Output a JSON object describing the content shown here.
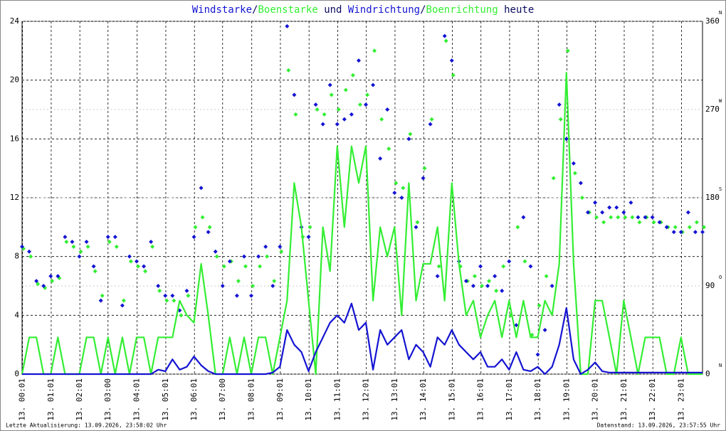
{
  "chart_data": {
    "type": "line",
    "title_joins": [
      "/",
      " und ",
      "/",
      " heute"
    ],
    "title_text_color": "#0a0a60",
    "footer_left": "Letzte Aktualisierung: 13.09.2026, 23:58:02 Uhr",
    "footer_right": "Datenstand: 13.09.2026, 23:57:55 Uhr",
    "x": [
      0,
      0.25,
      0.5,
      0.75,
      1,
      1.25,
      1.5,
      1.75,
      2,
      2.25,
      2.5,
      2.75,
      3,
      3.25,
      3.5,
      3.75,
      4,
      4.25,
      4.5,
      4.75,
      5,
      5.25,
      5.5,
      5.75,
      6,
      6.25,
      6.5,
      6.75,
      7,
      7.25,
      7.5,
      7.75,
      8,
      8.25,
      8.5,
      8.75,
      9,
      9.25,
      9.5,
      9.75,
      10,
      10.25,
      10.5,
      10.75,
      11,
      11.25,
      11.5,
      11.75,
      12,
      12.25,
      12.5,
      12.75,
      13,
      13.25,
      13.5,
      13.75,
      14,
      14.25,
      14.5,
      14.75,
      15,
      15.25,
      15.5,
      15.75,
      16,
      16.25,
      16.5,
      16.75,
      17,
      17.25,
      17.5,
      17.75,
      18,
      18.25,
      18.5,
      18.75,
      19,
      19.25,
      19.5,
      19.75,
      20,
      20.25,
      20.5,
      20.75,
      21,
      21.25,
      21.5,
      21.75,
      22,
      22.25,
      22.5,
      22.75,
      23,
      23.25,
      23.5,
      23.75
    ],
    "xlim": [
      0,
      23.75
    ],
    "xticks": [
      {
        "value": 0.017,
        "label": "13. 00:01"
      },
      {
        "value": 1.017,
        "label": "13. 01:01"
      },
      {
        "value": 2.017,
        "label": "13. 02:01"
      },
      {
        "value": 3,
        "label": "13. 03:00"
      },
      {
        "value": 4.017,
        "label": "13. 04:01"
      },
      {
        "value": 5.017,
        "label": "13. 05:01"
      },
      {
        "value": 6.017,
        "label": "13. 06:01"
      },
      {
        "value": 7,
        "label": "13. 07:00"
      },
      {
        "value": 8.017,
        "label": "13. 08:01"
      },
      {
        "value": 9.017,
        "label": "13. 09:01"
      },
      {
        "value": 10.017,
        "label": "13. 10:01"
      },
      {
        "value": 11.017,
        "label": "13. 11:01"
      },
      {
        "value": 12.017,
        "label": "13. 12:01"
      },
      {
        "value": 13.017,
        "label": "13. 13:01"
      },
      {
        "value": 14.017,
        "label": "13. 14:01"
      },
      {
        "value": 15.017,
        "label": "13. 15:01"
      },
      {
        "value": 16.017,
        "label": "13. 16:01"
      },
      {
        "value": 17.017,
        "label": "13. 17:01"
      },
      {
        "value": 18.017,
        "label": "13. 18:01"
      },
      {
        "value": 19.017,
        "label": "13. 19:01"
      },
      {
        "value": 20.017,
        "label": "13. 20:01"
      },
      {
        "value": 21.017,
        "label": "13. 21:01"
      },
      {
        "value": 22.017,
        "label": "13. 22:01"
      },
      {
        "value": 23.017,
        "label": "13. 23:01"
      }
    ],
    "ylim": [
      0,
      24
    ],
    "yticks": [
      0,
      4,
      8,
      12,
      16,
      20,
      24
    ],
    "y2lim": [
      0,
      360
    ],
    "y2ticks": [
      0,
      90,
      180,
      270,
      360
    ],
    "y2tick_compass": [
      "N",
      "O",
      "S",
      "W",
      "N"
    ],
    "grid": true,
    "series": [
      {
        "name": "Windstarke",
        "color": "#1414d2",
        "kind": "line",
        "values": [
          0,
          0,
          0,
          0,
          0,
          0,
          0,
          0,
          0,
          0,
          0,
          0,
          0,
          0,
          0,
          0,
          0,
          0,
          0,
          0.3,
          0.2,
          1,
          0.3,
          0.5,
          1.2,
          0.6,
          0.2,
          0,
          0,
          0,
          0,
          0,
          0,
          0,
          0,
          0.1,
          0.5,
          3,
          2,
          1.5,
          0.2,
          1.5,
          2.5,
          3.5,
          4,
          3.5,
          4.8,
          3,
          3.5,
          0.3,
          3,
          2,
          2.5,
          3,
          1,
          2,
          1.5,
          0.5,
          2.5,
          2,
          3,
          2,
          1.5,
          1,
          1.5,
          0.5,
          0.5,
          1,
          0.3,
          1.5,
          0.3,
          0.2,
          0.5,
          0,
          0.5,
          2,
          4.5,
          1,
          0,
          0.3,
          0.8,
          0.2,
          0.1,
          0.1,
          0.1,
          0.1,
          0.1,
          0.1,
          0.1,
          0.1,
          0.1,
          0.1,
          0.1,
          0.1,
          0.1,
          0.1
        ]
      },
      {
        "name": "Boenstarke",
        "color": "#33ee33",
        "kind": "line",
        "values": [
          0,
          2.5,
          2.5,
          0,
          0,
          2.5,
          0,
          0,
          0,
          2.5,
          2.5,
          0,
          2.5,
          0,
          2.5,
          0,
          2.5,
          2.5,
          0,
          2.5,
          2.5,
          2.5,
          5,
          4,
          3.5,
          7.5,
          4,
          0,
          0,
          2.5,
          0,
          2.5,
          0,
          2.5,
          2.5,
          0,
          2.5,
          5,
          13,
          10,
          5,
          0,
          10,
          7,
          15.5,
          10,
          15.5,
          13,
          15.5,
          5,
          10,
          8,
          10,
          4,
          13,
          5,
          7.5,
          7.5,
          10,
          5,
          13,
          7.5,
          4,
          5,
          2.5,
          4,
          5,
          2.5,
          5,
          2.5,
          5,
          2.5,
          2.5,
          5,
          4,
          7.5,
          20.5,
          7.5,
          0,
          0,
          5,
          5,
          2.5,
          0,
          5,
          2.5,
          0,
          2.5,
          2.5,
          2.5,
          0,
          0,
          2.5,
          0,
          0,
          0
        ]
      },
      {
        "name": "Windrichtung",
        "color": "#1414d2",
        "kind": "scatter",
        "axis": "y2",
        "values": [
          130,
          125,
          95,
          90,
          100,
          100,
          140,
          135,
          120,
          135,
          110,
          75,
          140,
          140,
          70,
          120,
          115,
          110,
          135,
          90,
          80,
          80,
          65,
          85,
          140,
          190,
          145,
          125,
          90,
          115,
          80,
          120,
          80,
          120,
          130,
          90,
          130,
          355,
          285,
          150,
          140,
          275,
          255,
          295,
          255,
          260,
          265,
          320,
          275,
          295,
          220,
          270,
          185,
          180,
          240,
          150,
          200,
          255,
          100,
          345,
          320,
          115,
          95,
          90,
          110,
          90,
          100,
          85,
          115,
          50,
          160,
          110,
          20,
          45,
          90,
          275,
          240,
          215,
          195,
          165,
          175,
          165,
          170,
          170,
          165,
          175,
          160,
          160,
          160,
          155,
          150,
          145,
          145,
          165,
          145,
          145
        ]
      },
      {
        "name": "Boenrichtung",
        "color": "#33ee33",
        "kind": "scatter",
        "axis": "y2",
        "values": [
          128,
          120,
          92,
          88,
          95,
          98,
          135,
          130,
          125,
          130,
          105,
          80,
          135,
          130,
          75,
          115,
          110,
          105,
          130,
          85,
          75,
          75,
          60,
          80,
          150,
          160,
          150,
          120,
          110,
          115,
          95,
          110,
          90,
          110,
          120,
          95,
          125,
          310,
          265,
          140,
          150,
          270,
          265,
          285,
          270,
          290,
          305,
          275,
          285,
          330,
          260,
          230,
          195,
          190,
          245,
          155,
          210,
          260,
          110,
          340,
          305,
          110,
          95,
          100,
          90,
          95,
          85,
          110,
          60,
          150,
          115,
          40,
          70,
          100,
          200,
          260,
          330,
          205,
          180,
          165,
          160,
          155,
          160,
          160,
          160,
          160,
          155,
          160,
          155,
          155,
          150,
          150,
          145,
          150,
          155,
          150
        ]
      }
    ]
  }
}
